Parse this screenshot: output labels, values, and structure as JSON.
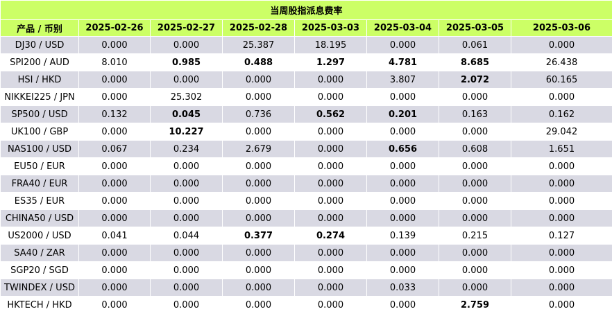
{
  "title": "当周股指派息费率",
  "columns": [
    "产品 / 币别",
    "2025-02-26",
    "2025-02-27",
    "2025-02-28",
    "2025-03-03",
    "2025-03-04",
    "2025-03-05",
    "2025-03-06"
  ],
  "rows": [
    {
      "product": "DJ30 / USD",
      "values": [
        "0.000",
        "0.000",
        "25.387",
        "18.195",
        "0.000",
        "0.061",
        "0.000"
      ],
      "bold": [
        false,
        false,
        false,
        false,
        false,
        false,
        false
      ]
    },
    {
      "product": "SPI200 / AUD",
      "values": [
        "8.010",
        "0.985",
        "0.488",
        "1.297",
        "4.781",
        "8.685",
        "26.438"
      ],
      "bold": [
        false,
        true,
        true,
        true,
        true,
        true,
        false
      ]
    },
    {
      "product": "HSI / HKD",
      "values": [
        "0.000",
        "0.000",
        "0.000",
        "0.000",
        "3.807",
        "2.072",
        "60.165"
      ],
      "bold": [
        false,
        false,
        false,
        false,
        false,
        true,
        false
      ]
    },
    {
      "product": "NIKKEI225 / JPN",
      "values": [
        "0.000",
        "25.302",
        "0.000",
        "0.000",
        "0.000",
        "0.000",
        "0.000"
      ],
      "bold": [
        false,
        false,
        false,
        false,
        false,
        false,
        false
      ]
    },
    {
      "product": "SP500 / USD",
      "values": [
        "0.132",
        "0.045",
        "0.736",
        "0.562",
        "0.201",
        "0.163",
        "0.162"
      ],
      "bold": [
        false,
        true,
        false,
        true,
        true,
        false,
        false
      ]
    },
    {
      "product": "UK100 / GBP",
      "values": [
        "0.000",
        "10.227",
        "0.000",
        "0.000",
        "0.000",
        "0.000",
        "29.042"
      ],
      "bold": [
        false,
        true,
        false,
        false,
        false,
        false,
        false
      ]
    },
    {
      "product": "NAS100 / USD",
      "values": [
        "0.067",
        "0.234",
        "2.679",
        "0.000",
        "0.656",
        "0.608",
        "1.651"
      ],
      "bold": [
        false,
        false,
        false,
        false,
        true,
        false,
        false
      ]
    },
    {
      "product": "EU50 / EUR",
      "values": [
        "0.000",
        "0.000",
        "0.000",
        "0.000",
        "0.000",
        "0.000",
        "0.000"
      ],
      "bold": [
        false,
        false,
        false,
        false,
        false,
        false,
        false
      ]
    },
    {
      "product": "FRA40 / EUR",
      "values": [
        "0.000",
        "0.000",
        "0.000",
        "0.000",
        "0.000",
        "0.000",
        "0.000"
      ],
      "bold": [
        false,
        false,
        false,
        false,
        false,
        false,
        false
      ]
    },
    {
      "product": "ES35 / EUR",
      "values": [
        "0.000",
        "0.000",
        "0.000",
        "0.000",
        "0.000",
        "0.000",
        "0.000"
      ],
      "bold": [
        false,
        false,
        false,
        false,
        false,
        false,
        false
      ]
    },
    {
      "product": "CHINA50 / USD",
      "values": [
        "0.000",
        "0.000",
        "0.000",
        "0.000",
        "0.000",
        "0.000",
        "0.000"
      ],
      "bold": [
        false,
        false,
        false,
        false,
        false,
        false,
        false
      ]
    },
    {
      "product": "US2000 / USD",
      "values": [
        "0.041",
        "0.044",
        "0.377",
        "0.274",
        "0.139",
        "0.215",
        "0.127"
      ],
      "bold": [
        false,
        false,
        true,
        true,
        false,
        false,
        false
      ]
    },
    {
      "product": "SA40 / ZAR",
      "values": [
        "0.000",
        "0.000",
        "0.000",
        "0.000",
        "0.000",
        "0.000",
        "0.000"
      ],
      "bold": [
        false,
        false,
        false,
        false,
        false,
        false,
        false
      ]
    },
    {
      "product": "SGP20 / SGD",
      "values": [
        "0.000",
        "0.000",
        "0.000",
        "0.000",
        "0.000",
        "0.000",
        "0.000"
      ],
      "bold": [
        false,
        false,
        false,
        false,
        false,
        false,
        false
      ]
    },
    {
      "product": "TWINDEX / USD",
      "values": [
        "0.000",
        "0.000",
        "0.000",
        "0.000",
        "0.033",
        "0.000",
        "0.000"
      ],
      "bold": [
        false,
        false,
        false,
        false,
        false,
        false,
        false
      ]
    },
    {
      "product": "HKTECH / HKD",
      "values": [
        "0.000",
        "0.000",
        "0.000",
        "0.000",
        "0.000",
        "2.759",
        "0.000"
      ],
      "bold": [
        false,
        false,
        false,
        false,
        false,
        true,
        false
      ]
    }
  ],
  "colors": {
    "header_bg": "#ccff66",
    "row_shade": "#d9d9e3",
    "row_plain": "#ffffff",
    "grid": "#ffffff"
  }
}
